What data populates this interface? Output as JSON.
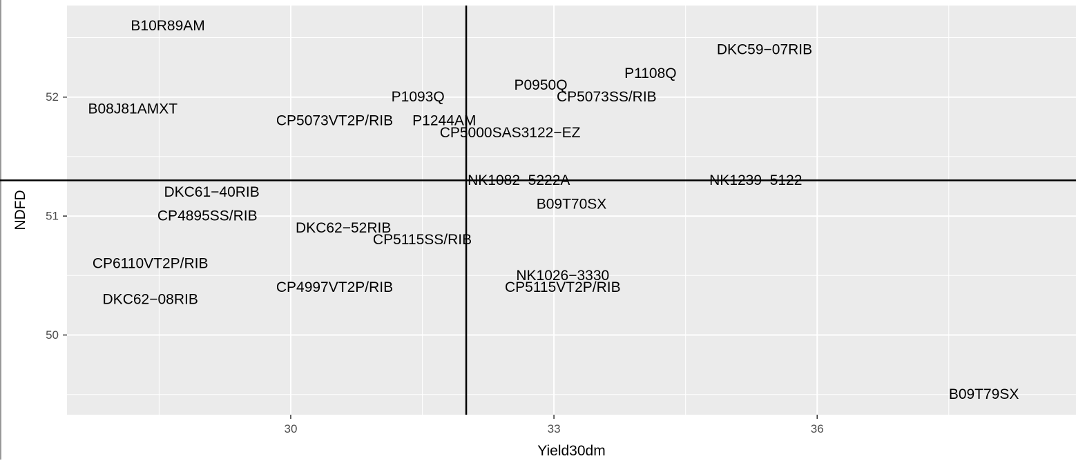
{
  "chart_data": {
    "type": "scatter",
    "xlabel": "Yield30dm",
    "ylabel": "NDFD",
    "xlim": [
      27.45,
      38.95
    ],
    "ylim": [
      49.33,
      52.77
    ],
    "x_ticks": [
      30,
      33,
      36
    ],
    "y_ticks": [
      50,
      51,
      52
    ],
    "grid": true,
    "background": "#ebebeb",
    "grid_major_color": "#ffffff",
    "reference_lines": {
      "x": 32.0,
      "y": 51.3
    },
    "points": [
      {
        "label": "B10R89AM",
        "x": 28.6,
        "y": 52.6
      },
      {
        "label": "DKC59−07RIB",
        "x": 35.4,
        "y": 52.4
      },
      {
        "label": "P1108Q",
        "x": 34.1,
        "y": 52.2
      },
      {
        "label": "P0950Q",
        "x": 32.85,
        "y": 52.1
      },
      {
        "label": "P1093Q",
        "x": 31.45,
        "y": 52.0
      },
      {
        "label": "CP5073SS/RIB",
        "x": 33.6,
        "y": 52.0
      },
      {
        "label": "B08J81AMXT",
        "x": 28.2,
        "y": 51.9
      },
      {
        "label": "CP5073VT2P/RIB",
        "x": 30.5,
        "y": 51.8
      },
      {
        "label": "P1244AM",
        "x": 31.75,
        "y": 51.8
      },
      {
        "label": "CP5000SAS3122−EZ",
        "x": 32.5,
        "y": 51.7
      },
      {
        "label": "NK1082  5222A",
        "x": 32.6,
        "y": 51.3
      },
      {
        "label": "NK1239  5122",
        "x": 35.3,
        "y": 51.3
      },
      {
        "label": "DKC61−40RIB",
        "x": 29.1,
        "y": 51.2
      },
      {
        "label": "B09T70SX",
        "x": 33.2,
        "y": 51.1
      },
      {
        "label": "CP4895SS/RIB",
        "x": 29.05,
        "y": 51.0
      },
      {
        "label": "DKC62−52RIB",
        "x": 30.6,
        "y": 50.9
      },
      {
        "label": "CP5115SS/RIB",
        "x": 31.5,
        "y": 50.8
      },
      {
        "label": "CP6110VT2P/RIB",
        "x": 28.4,
        "y": 50.6
      },
      {
        "label": "NK1026−3330",
        "x": 33.1,
        "y": 50.5
      },
      {
        "label": "CP4997VT2P/RIB",
        "x": 30.5,
        "y": 50.4
      },
      {
        "label": "CP5115VT2P/RIB",
        "x": 33.1,
        "y": 50.4
      },
      {
        "label": "DKC62−08RIB",
        "x": 28.4,
        "y": 50.3
      },
      {
        "label": "B09T79SX",
        "x": 37.9,
        "y": 49.5
      }
    ]
  }
}
